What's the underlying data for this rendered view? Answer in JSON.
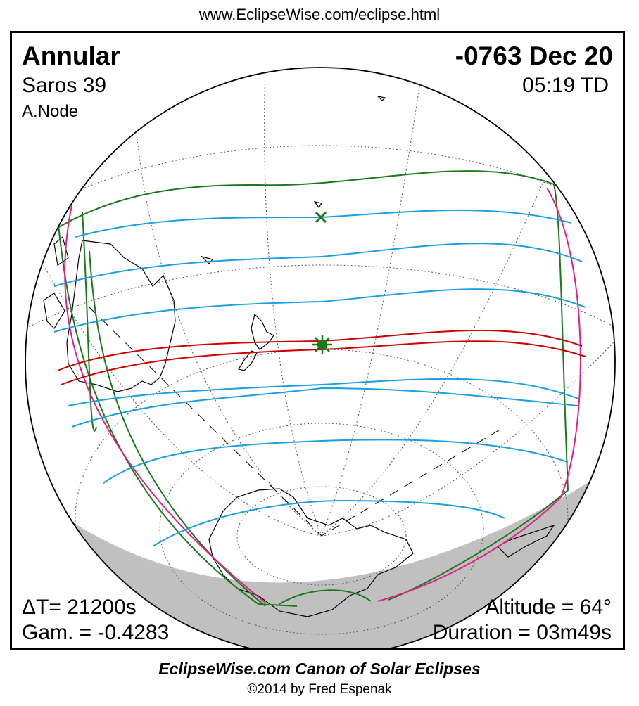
{
  "header": {
    "url": "www.EclipseWise.com/eclipse.html"
  },
  "eclipse": {
    "type": "Annular",
    "date": "-0763 Dec 20",
    "saros": "Saros  39",
    "time": "05:19 TD",
    "node": "A.Node",
    "delta_t": "ΔT=  21200s",
    "gamma": "Gam. = -0.4283",
    "altitude": "Altitude = 64°",
    "duration": "Duration = 03m49s"
  },
  "colors": {
    "central_path": "#cc0000",
    "penumbra_limits": "#1aa0e0",
    "sunrise_sunset": "#e0208a",
    "outer_limits": "#1a7a1a",
    "greatest_eclipse": "#1a7a1a",
    "night_shadow": "#c0c0c0"
  },
  "markers": {
    "greatest_eclipse_icon": "star-burst",
    "subsolar_icon": "x-cross"
  },
  "footer": {
    "title": "EclipseWise.com Canon of Solar Eclipses",
    "copyright": "©2014 by Fred Espenak"
  }
}
